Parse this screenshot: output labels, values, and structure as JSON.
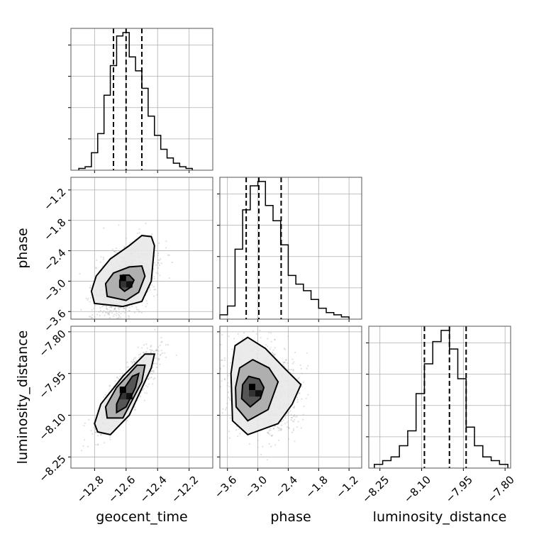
{
  "chart_data": {
    "type": "corner",
    "parameters": [
      "geocent_time",
      "phase",
      "luminosity_distance"
    ],
    "axes": {
      "geocent_time": {
        "label": "geocent_time",
        "range": [
          -12.95,
          -12.05
        ],
        "ticks": [
          -12.8,
          -12.6,
          -12.4,
          -12.2
        ],
        "tick_labels": [
          "−12.8",
          "−12.6",
          "−12.4",
          "−12.2"
        ]
      },
      "phase": {
        "label": "phase",
        "range": [
          -3.75,
          -0.95
        ],
        "ticks": [
          -3.6,
          -3.0,
          -2.4,
          -1.8,
          -1.2
        ],
        "tick_labels": [
          "−3.6",
          "−3.0",
          "−2.4",
          "−1.8",
          "−1.2"
        ]
      },
      "luminosity_distance": {
        "label": "luminosity_distance",
        "range": [
          -8.29,
          -7.78
        ],
        "ticks": [
          -8.25,
          -8.1,
          -7.95,
          -7.8
        ],
        "tick_labels": [
          "−8.25",
          "−8.10",
          "−7.95",
          "−7.80"
        ]
      }
    },
    "histograms": {
      "geocent_time": {
        "bin_edges": [
          -12.9,
          -12.86,
          -12.82,
          -12.78,
          -12.74,
          -12.7,
          -12.66,
          -12.62,
          -12.58,
          -12.54,
          -12.5,
          -12.46,
          -12.42,
          -12.38,
          -12.34,
          -12.3,
          -12.26,
          -12.22,
          -12.18
        ],
        "counts": [
          1,
          2,
          10,
          21,
          43,
          60,
          77,
          79,
          65,
          57,
          47,
          31,
          20,
          12,
          7,
          4,
          2,
          1
        ],
        "quantiles": [
          -12.68,
          -12.6,
          -12.5
        ]
      },
      "phase": {
        "bin_edges": [
          -3.75,
          -3.6,
          -3.45,
          -3.3,
          -3.15,
          -3.0,
          -2.85,
          -2.7,
          -2.55,
          -2.4,
          -2.25,
          -2.1,
          -1.95,
          -1.8,
          -1.65,
          -1.5,
          -1.35,
          -1.2
        ],
        "counts": [
          2,
          6,
          32,
          50,
          61,
          63,
          52,
          45,
          34,
          20,
          16,
          13,
          9,
          5,
          3,
          2,
          1
        ],
        "quantiles": [
          -3.23,
          -2.98,
          -2.54
        ]
      },
      "luminosity_distance": {
        "bin_edges": [
          -8.27,
          -8.24,
          -8.21,
          -8.18,
          -8.15,
          -8.12,
          -8.09,
          -8.06,
          -8.03,
          -8.0,
          -7.97,
          -7.94,
          -7.91,
          -7.88,
          -7.85,
          -7.82,
          -7.79
        ],
        "counts": [
          1,
          2,
          3,
          6,
          10,
          20,
          28,
          34,
          37,
          32,
          24,
          11,
          6,
          3,
          2,
          1
        ],
        "quantiles": [
          -8.09,
          -8.0,
          -7.94
        ]
      }
    },
    "pairs": [
      {
        "x": "geocent_time",
        "y": "phase",
        "peak": [
          -12.6,
          -3.0
        ],
        "contours": [
          [
            [
              -12.64,
              -3.12
            ],
            [
              -12.61,
              -3.2
            ],
            [
              -12.57,
              -3.12
            ],
            [
              -12.55,
              -2.98
            ],
            [
              -12.58,
              -2.88
            ],
            [
              -12.62,
              -2.88
            ],
            [
              -12.64,
              -2.98
            ]
          ],
          [
            [
              -12.72,
              -3.3
            ],
            [
              -12.6,
              -3.38
            ],
            [
              -12.52,
              -3.22
            ],
            [
              -12.48,
              -2.9
            ],
            [
              -12.5,
              -2.7
            ],
            [
              -12.58,
              -2.72
            ],
            [
              -12.68,
              -2.84
            ],
            [
              -12.73,
              -3.05
            ]
          ],
          [
            [
              -12.8,
              -3.44
            ],
            [
              -12.62,
              -3.5
            ],
            [
              -12.5,
              -3.4
            ],
            [
              -12.44,
              -3.0
            ],
            [
              -12.42,
              -2.3
            ],
            [
              -12.44,
              -2.12
            ],
            [
              -12.5,
              -2.1
            ],
            [
              -12.58,
              -2.3
            ],
            [
              -12.7,
              -2.56
            ],
            [
              -12.79,
              -2.9
            ],
            [
              -12.82,
              -3.2
            ]
          ]
        ]
      },
      {
        "x": "geocent_time",
        "y": "luminosity_distance",
        "peak": [
          -12.6,
          -8.02
        ],
        "contours": [
          [
            [
              -12.66,
              -8.09
            ],
            [
              -12.6,
              -8.07
            ],
            [
              -12.54,
              -8.0
            ],
            [
              -12.52,
              -7.95
            ],
            [
              -12.56,
              -7.96
            ],
            [
              -12.62,
              -8.01
            ],
            [
              -12.66,
              -8.06
            ]
          ],
          [
            [
              -12.72,
              -8.11
            ],
            [
              -12.62,
              -8.11
            ],
            [
              -12.5,
              -7.98
            ],
            [
              -12.48,
              -7.92
            ],
            [
              -12.53,
              -7.92
            ],
            [
              -12.66,
              -8.0
            ],
            [
              -12.73,
              -8.07
            ]
          ],
          [
            [
              -12.78,
              -8.16
            ],
            [
              -12.7,
              -8.17
            ],
            [
              -12.58,
              -8.1
            ],
            [
              -12.44,
              -7.93
            ],
            [
              -12.42,
              -7.88
            ],
            [
              -12.48,
              -7.88
            ],
            [
              -12.62,
              -7.96
            ],
            [
              -12.76,
              -8.06
            ],
            [
              -12.8,
              -8.13
            ]
          ]
        ]
      },
      {
        "x": "phase",
        "y": "luminosity_distance",
        "peak": [
          -3.05,
          -8.01
        ],
        "contours": [
          [
            [
              -3.32,
              -8.04
            ],
            [
              -3.15,
              -8.07
            ],
            [
              -2.95,
              -8.04
            ],
            [
              -2.88,
              -8.0
            ],
            [
              -2.97,
              -7.97
            ],
            [
              -3.18,
              -7.96
            ],
            [
              -3.3,
              -7.99
            ]
          ],
          [
            [
              -3.43,
              -8.07
            ],
            [
              -3.2,
              -8.12
            ],
            [
              -2.8,
              -8.08
            ],
            [
              -2.6,
              -7.98
            ],
            [
              -2.78,
              -7.93
            ],
            [
              -3.1,
              -7.9
            ],
            [
              -3.36,
              -7.93
            ],
            [
              -3.44,
              -8.0
            ]
          ],
          [
            [
              -3.5,
              -8.12
            ],
            [
              -3.2,
              -8.17
            ],
            [
              -2.6,
              -8.13
            ],
            [
              -2.32,
              -8.06
            ],
            [
              -2.15,
              -7.99
            ],
            [
              -2.48,
              -7.93
            ],
            [
              -2.85,
              -7.86
            ],
            [
              -3.2,
              -7.82
            ],
            [
              -3.45,
              -7.85
            ],
            [
              -3.53,
              -7.95
            ]
          ]
        ]
      }
    ]
  }
}
